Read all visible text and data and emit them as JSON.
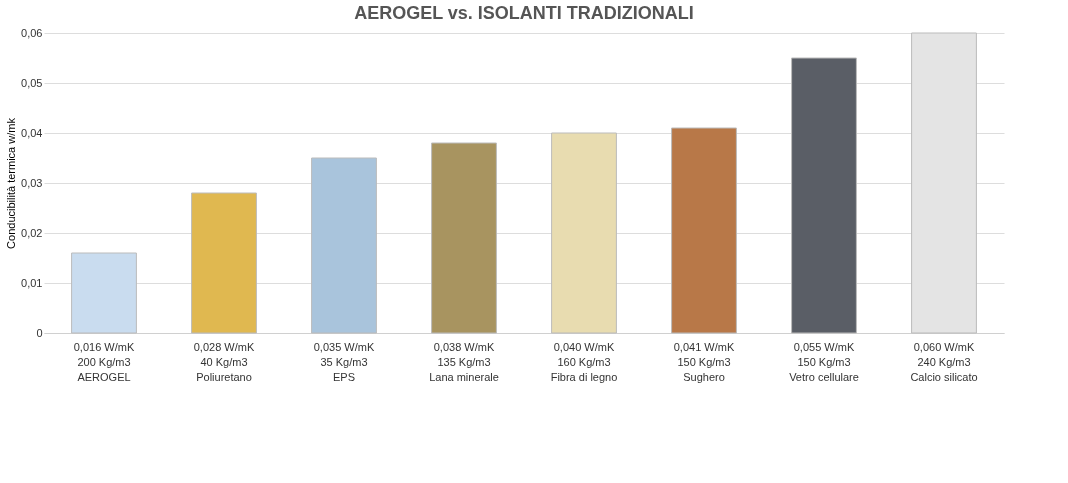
{
  "chart_data": {
    "type": "bar",
    "title": "AEROGEL vs. ISOLANTI TRADIZIONALI",
    "ylabel": "Conducibilità termica w/mk",
    "categories": [
      "0,016 W/mK\n200 Kg/m3\nAEROGEL",
      "0,028 W/mK\n40 Kg/m3\nPoliuretano",
      "0,035 W/mK\n35 Kg/m3\nEPS",
      "0,038 W/mK\n135 Kg/m3\nLana minerale",
      "0,040 W/mK\n160 Kg/m3\nFibra di legno",
      "0,041 W/mK\n150 Kg/m3\nSughero",
      "0,055 W/mK\n150 Kg/m3\nVetro cellulare",
      "0,060 W/mK\n240 Kg/m3\nCalcio silicato"
    ],
    "values": [
      0.016,
      0.028,
      0.035,
      0.038,
      0.04,
      0.041,
      0.055,
      0.06
    ],
    "colors": [
      "#c9dcef",
      "#e0b850",
      "#a9c4dc",
      "#a89460",
      "#e8dcb0",
      "#b87848",
      "#5a5e66",
      "#e4e4e4"
    ],
    "ylim": [
      0,
      0.06
    ],
    "yticks": [
      0,
      {
        "value": 0.01,
        "label": "0,01"
      },
      {
        "value": 0.02,
        "label": "0,02"
      },
      {
        "value": 0.03,
        "label": "0,03"
      },
      {
        "value": 0.04,
        "label": "0,04"
      },
      {
        "value": 0.05,
        "label": "0,05"
      },
      {
        "value": 0.06,
        "label": "0,06"
      }
    ],
    "grid": true
  }
}
